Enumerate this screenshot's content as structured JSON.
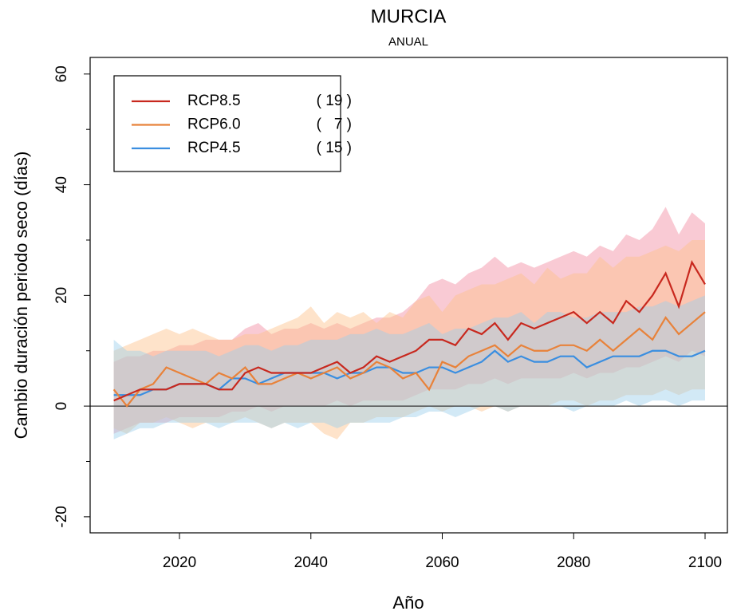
{
  "chart_data": {
    "type": "line",
    "title": "MURCIA",
    "subtitle": "ANUAL",
    "xlabel": "Año",
    "ylabel": "Cambio duración periodo seco (días)",
    "x": [
      2010,
      2012,
      2014,
      2016,
      2018,
      2020,
      2022,
      2024,
      2026,
      2028,
      2030,
      2032,
      2034,
      2036,
      2038,
      2040,
      2042,
      2044,
      2046,
      2048,
      2050,
      2052,
      2054,
      2056,
      2058,
      2060,
      2062,
      2064,
      2066,
      2068,
      2070,
      2072,
      2074,
      2076,
      2078,
      2080,
      2082,
      2084,
      2086,
      2088,
      2090,
      2092,
      2094,
      2096,
      2098,
      2100
    ],
    "xlim": [
      2006.4,
      2103.4
    ],
    "xticks": [
      2020,
      2040,
      2060,
      2080,
      2100
    ],
    "ylim": [
      -22.9,
      63.0
    ],
    "yticks": [
      -20,
      0,
      20,
      40,
      60
    ],
    "yminorticks": [
      -10,
      10,
      30,
      50
    ],
    "hline": 0,
    "legend": "top-left",
    "series": [
      {
        "name": "RCP8.5",
        "count_label": "( 19 )",
        "color": "#c8281e",
        "band_color": "#f28aa0",
        "values": [
          1,
          2,
          3,
          3,
          3,
          4,
          4,
          4,
          3,
          3,
          6,
          7,
          6,
          6,
          6,
          6,
          7,
          8,
          6,
          7,
          9,
          8,
          9,
          10,
          12,
          12,
          11,
          14,
          13,
          15,
          12,
          15,
          14,
          15,
          16,
          17,
          15,
          17,
          15,
          19,
          17,
          20,
          24,
          18,
          26,
          22
        ],
        "lower": [
          -5,
          -4,
          -3,
          -3,
          -3,
          -2,
          -2,
          -2,
          -2,
          -1,
          -1,
          0,
          -1,
          0,
          0,
          0,
          0,
          1,
          0,
          1,
          1,
          1,
          1,
          2,
          3,
          3,
          3,
          4,
          4,
          5,
          4,
          5,
          5,
          5,
          5,
          6,
          5,
          6,
          6,
          7,
          7,
          8,
          9,
          8,
          10,
          9
        ],
        "upper": [
          8,
          9,
          9,
          10,
          10,
          11,
          11,
          12,
          12,
          12,
          14,
          15,
          13,
          14,
          14,
          15,
          14,
          15,
          14,
          15,
          16,
          16,
          17,
          19,
          22,
          23,
          22,
          24,
          25,
          27,
          25,
          26,
          25,
          26,
          27,
          28,
          27,
          29,
          28,
          31,
          30,
          32,
          36,
          31,
          35,
          33
        ]
      },
      {
        "name": "RCP6.0",
        "count_label": "(   7 )",
        "color": "#e8823a",
        "band_color": "#fcc08a",
        "values": [
          3,
          0,
          3,
          4,
          7,
          6,
          5,
          4,
          6,
          5,
          7,
          4,
          4,
          5,
          6,
          5,
          6,
          7,
          5,
          6,
          8,
          7,
          5,
          6,
          3,
          8,
          7,
          9,
          10,
          11,
          9,
          11,
          10,
          10,
          11,
          11,
          10,
          12,
          10,
          12,
          14,
          12,
          16,
          13,
          15,
          17
        ],
        "lower": [
          -4,
          -5,
          -3,
          -3,
          -2,
          -3,
          -4,
          -3,
          -3,
          -3,
          -2,
          -3,
          -4,
          -3,
          -3,
          -3,
          -5,
          -6,
          -3,
          -3,
          -2,
          -2,
          -2,
          -1,
          0,
          -1,
          0,
          0,
          -1,
          0,
          -1,
          0,
          0,
          0,
          1,
          1,
          0,
          1,
          1,
          2,
          2,
          2,
          3,
          2,
          3,
          3
        ],
        "upper": [
          10,
          11,
          12,
          13,
          14,
          13,
          14,
          13,
          12,
          12,
          13,
          13,
          14,
          15,
          16,
          18,
          15,
          17,
          16,
          17,
          15,
          17,
          16,
          19,
          20,
          17,
          20,
          21,
          22,
          22,
          23,
          24,
          22,
          25,
          23,
          24,
          24,
          27,
          25,
          27,
          27,
          28,
          29,
          28,
          30,
          30
        ]
      },
      {
        "name": "RCP4.5",
        "count_label": "( 15 )",
        "color": "#3a8ee0",
        "band_color": "#9ccfec",
        "values": [
          2,
          2,
          2,
          3,
          3,
          4,
          4,
          4,
          3,
          5,
          5,
          4,
          5,
          6,
          6,
          6,
          6,
          5,
          6,
          6,
          7,
          7,
          6,
          6,
          7,
          7,
          6,
          7,
          8,
          10,
          8,
          9,
          8,
          8,
          9,
          9,
          7,
          8,
          9,
          9,
          9,
          10,
          10,
          9,
          9,
          10
        ],
        "lower": [
          -6,
          -5,
          -4,
          -4,
          -3,
          -3,
          -3,
          -3,
          -4,
          -3,
          -3,
          -3,
          -4,
          -3,
          -4,
          -3,
          -3,
          -4,
          -3,
          -3,
          -3,
          -3,
          -2,
          -2,
          -1,
          -1,
          -2,
          -1,
          0,
          0,
          -1,
          0,
          0,
          0,
          0,
          -1,
          0,
          0,
          0,
          1,
          0,
          1,
          1,
          0,
          1,
          1
        ],
        "upper": [
          12,
          10,
          10,
          9,
          10,
          10,
          10,
          10,
          9,
          10,
          11,
          11,
          10,
          11,
          11,
          12,
          12,
          12,
          13,
          13,
          14,
          13,
          13,
          14,
          15,
          13,
          14,
          14,
          15,
          16,
          16,
          17,
          15,
          17,
          17,
          16,
          16,
          17,
          17,
          17,
          18,
          18,
          19,
          18,
          19,
          20
        ]
      }
    ]
  }
}
